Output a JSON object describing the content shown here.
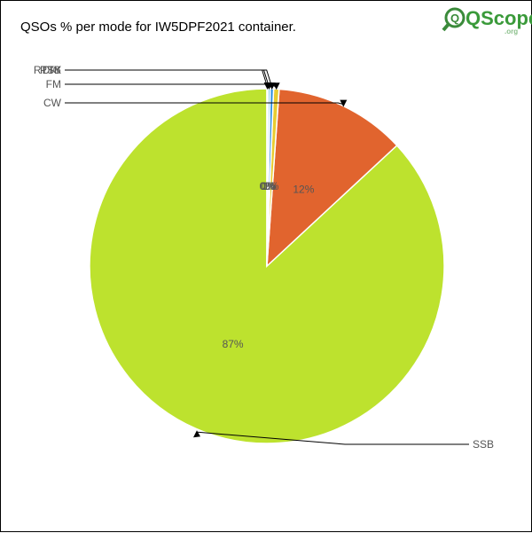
{
  "chart_data": {
    "type": "pie",
    "title": "QSOs % per mode for IW5DPF2021 container.",
    "start_angle_deg": 0,
    "direction": "counterclockwise",
    "slices": [
      {
        "label": "SSB",
        "value": 86.9,
        "pct_label": "87%",
        "color": "#bde22e"
      },
      {
        "label": "CW",
        "value": 12.0,
        "pct_label": "12%",
        "color": "#e1642e"
      },
      {
        "label": "FM",
        "value": 0.5,
        "pct_label": "1%",
        "color": "#e8cc30"
      },
      {
        "label": "DIG",
        "value": 0.3,
        "pct_label": "0%",
        "color": "#2e8fe0"
      },
      {
        "label": "RTTY",
        "value": 0.2,
        "pct_label": "0%",
        "color": "#7fc6f0"
      },
      {
        "label": "PSK",
        "value": 0.1,
        "pct_label": "0%",
        "color": "#a0e0d0"
      }
    ]
  },
  "logo": {
    "brand": "QScope",
    "suffix": ".org",
    "letter": "Q"
  }
}
